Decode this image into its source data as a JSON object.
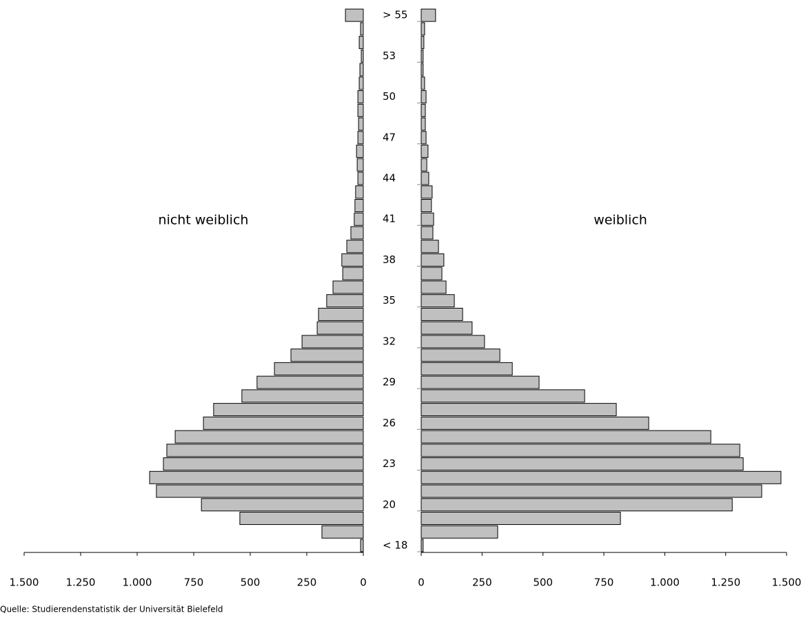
{
  "chart_data": {
    "type": "pyramid",
    "categories": [
      "< 18",
      null,
      null,
      "20",
      null,
      null,
      "23",
      null,
      null,
      "26",
      null,
      null,
      "29",
      null,
      null,
      "32",
      null,
      null,
      "35",
      null,
      null,
      "38",
      null,
      null,
      "41",
      null,
      null,
      "44",
      null,
      null,
      "47",
      null,
      null,
      "50",
      null,
      null,
      "53",
      null,
      null,
      "> 55"
    ],
    "series": [
      {
        "name": "nicht weiblich",
        "color": "#c0c0c0",
        "values": [
          12,
          183,
          546,
          716,
          915,
          945,
          884,
          869,
          832,
          707,
          662,
          537,
          470,
          393,
          320,
          271,
          204,
          198,
          162,
          134,
          91,
          95,
          73,
          55,
          40,
          37,
          34,
          24,
          27,
          30,
          24,
          21,
          24,
          24,
          18,
          15,
          9,
          18,
          12,
          79
        ]
      },
      {
        "name": "weiblich",
        "color": "#c0c0c0",
        "values": [
          8,
          314,
          818,
          1277,
          1398,
          1477,
          1322,
          1308,
          1189,
          934,
          801,
          671,
          484,
          374,
          323,
          260,
          209,
          170,
          136,
          102,
          85,
          93,
          71,
          48,
          51,
          42,
          45,
          31,
          23,
          28,
          20,
          17,
          17,
          20,
          14,
          8,
          8,
          11,
          14,
          59
        ]
      }
    ],
    "xlim": [
      0,
      1500
    ],
    "xticks": [
      0,
      250,
      500,
      750,
      {
        "value": 1000,
        "label": "1.000"
      },
      {
        "value": 1250,
        "label": "1.250"
      },
      {
        "value": 1500,
        "label": "1.500"
      }
    ],
    "source": "Quelle: Studierendenstatistik der Universität Bielefeld"
  }
}
